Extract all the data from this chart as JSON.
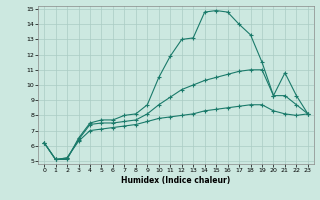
{
  "xlabel": "Humidex (Indice chaleur)",
  "background_color": "#cce8e0",
  "grid_color": "#aaccC4",
  "line_color": "#1a7a6a",
  "xlim": [
    -0.5,
    23.5
  ],
  "ylim": [
    4.8,
    15.2
  ],
  "xticks": [
    0,
    1,
    2,
    3,
    4,
    5,
    6,
    7,
    8,
    9,
    10,
    11,
    12,
    13,
    14,
    15,
    16,
    17,
    18,
    19,
    20,
    21,
    22,
    23
  ],
  "yticks": [
    5,
    6,
    7,
    8,
    9,
    10,
    11,
    12,
    13,
    14,
    15
  ],
  "line1_x": [
    0,
    1,
    2,
    3,
    4,
    5,
    6,
    7,
    8,
    9,
    10,
    11,
    12,
    13,
    14,
    15,
    16,
    17,
    18,
    19,
    20,
    21,
    22,
    23
  ],
  "line1_y": [
    6.2,
    5.1,
    5.1,
    6.5,
    7.5,
    7.7,
    7.7,
    8.0,
    8.1,
    8.7,
    10.5,
    11.9,
    13.0,
    13.1,
    14.8,
    14.9,
    14.8,
    14.0,
    13.3,
    11.5,
    9.3,
    10.8,
    9.3,
    8.1
  ],
  "line2_x": [
    0,
    1,
    2,
    3,
    4,
    5,
    6,
    7,
    8,
    9,
    10,
    11,
    12,
    13,
    14,
    15,
    16,
    17,
    18,
    19,
    20,
    21,
    22,
    23
  ],
  "line2_y": [
    6.2,
    5.1,
    5.2,
    6.4,
    7.4,
    7.5,
    7.5,
    7.6,
    7.7,
    8.1,
    8.7,
    9.2,
    9.7,
    10.0,
    10.3,
    10.5,
    10.7,
    10.9,
    11.0,
    11.0,
    9.3,
    9.3,
    8.7,
    8.1
  ],
  "line3_x": [
    0,
    1,
    2,
    3,
    4,
    5,
    6,
    7,
    8,
    9,
    10,
    11,
    12,
    13,
    14,
    15,
    16,
    17,
    18,
    19,
    20,
    21,
    22,
    23
  ],
  "line3_y": [
    6.2,
    5.1,
    5.2,
    6.3,
    7.0,
    7.1,
    7.2,
    7.3,
    7.4,
    7.6,
    7.8,
    7.9,
    8.0,
    8.1,
    8.3,
    8.4,
    8.5,
    8.6,
    8.7,
    8.7,
    8.3,
    8.1,
    8.0,
    8.1
  ]
}
